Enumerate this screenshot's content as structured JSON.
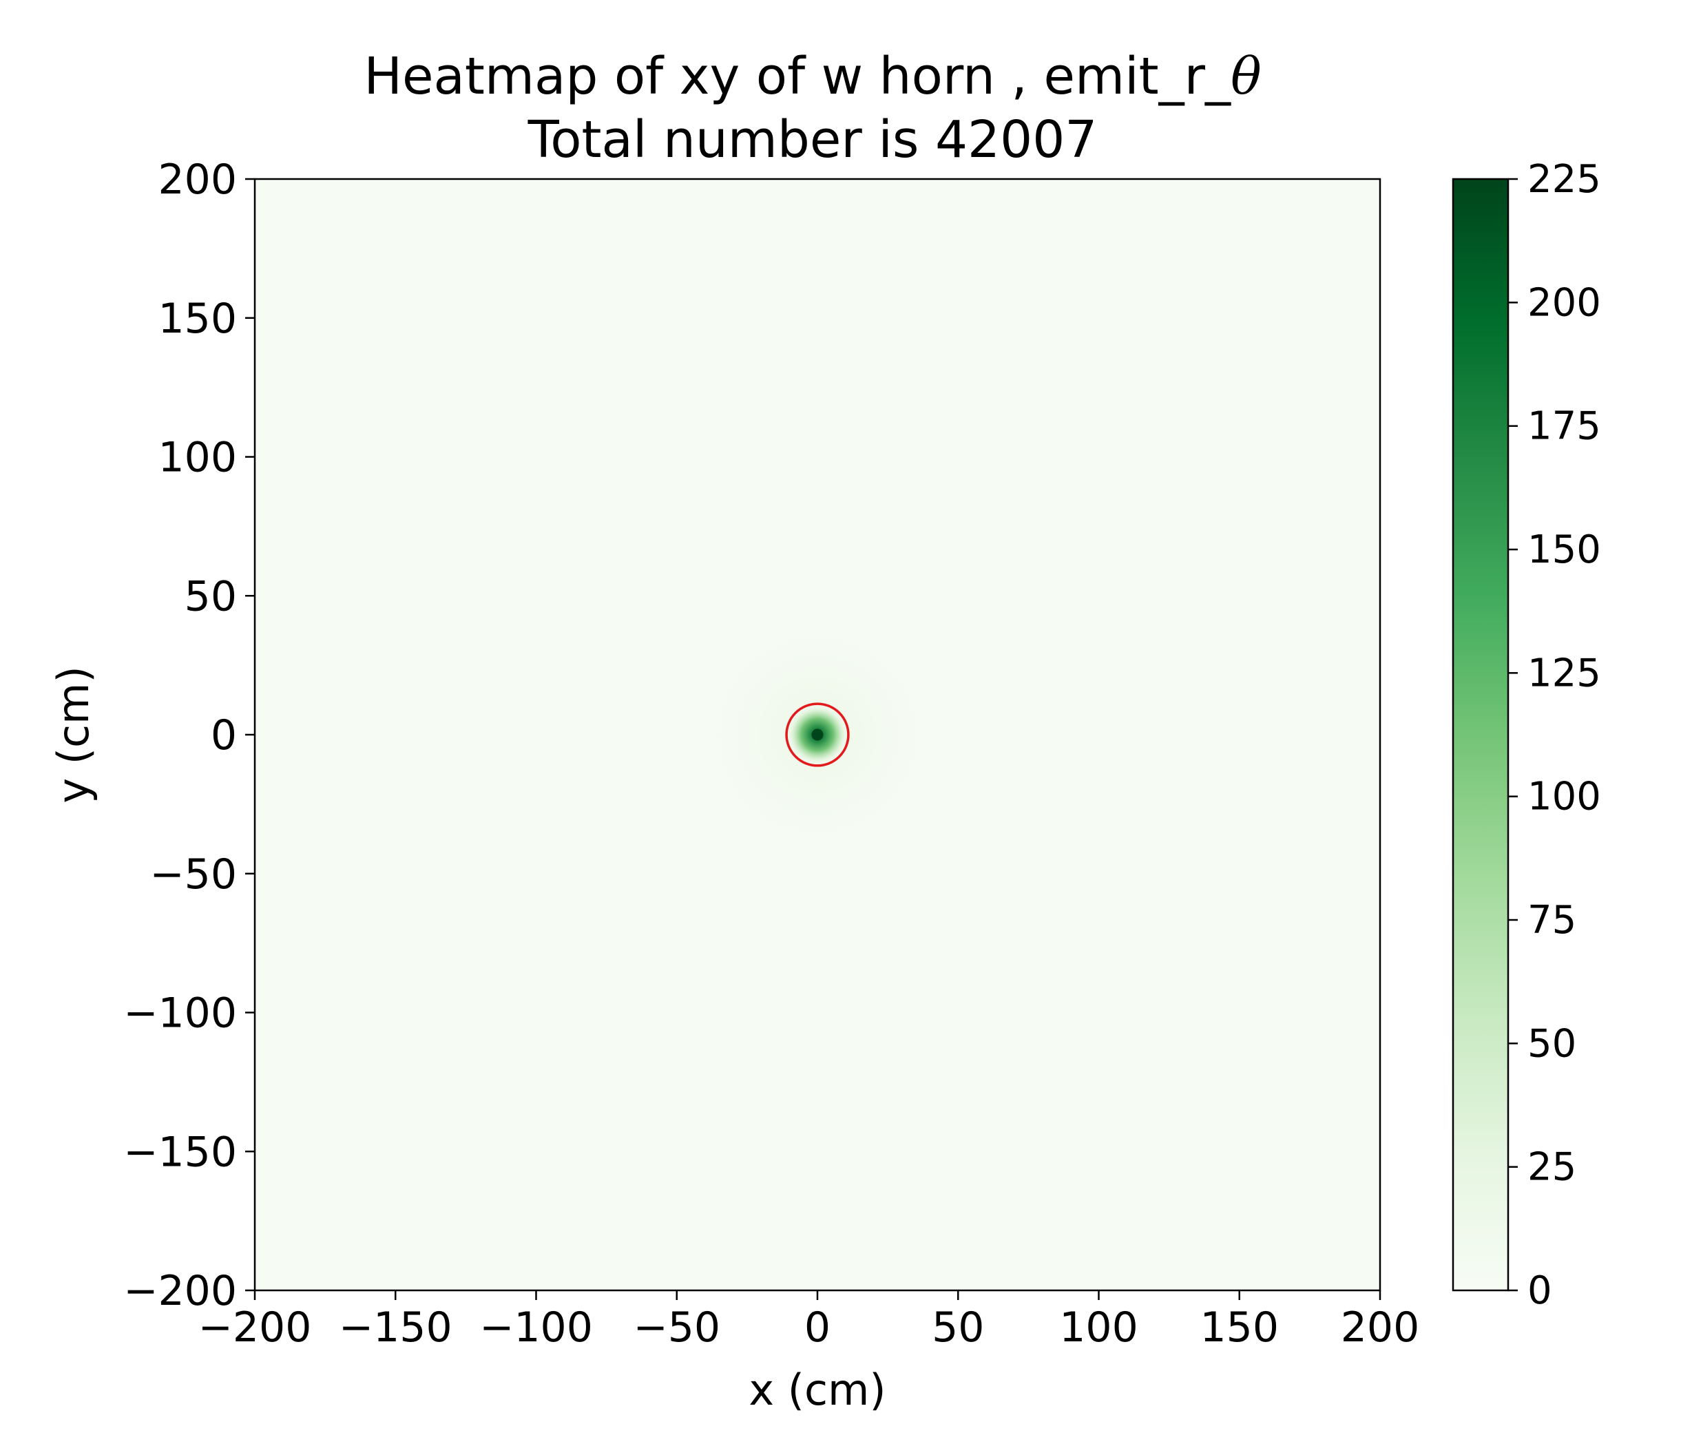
{
  "chart_data": {
    "type": "heatmap",
    "title": "Heatmap of xy of w horn , emit_r_θ",
    "title_line1_text": "Heatmap of xy of w horn , emit_r_",
    "title_line1_symbol": "θ",
    "subtitle": "Total number is 42007",
    "xlabel": "x (cm)",
    "ylabel": "y (cm)",
    "xlim": [
      -200,
      200
    ],
    "ylim": [
      -200,
      200
    ],
    "xticks": [
      -200,
      -150,
      -100,
      -50,
      0,
      50,
      100,
      150,
      200
    ],
    "yticks": [
      -200,
      -150,
      -100,
      -50,
      0,
      50,
      100,
      150,
      200
    ],
    "xtick_labels": [
      "−200",
      "−150",
      "−100",
      "−50",
      "0",
      "50",
      "100",
      "150",
      "200"
    ],
    "ytick_labels": [
      "−200",
      "−150",
      "−100",
      "−50",
      "0",
      "50",
      "100",
      "150",
      "200"
    ],
    "colorbar": {
      "cmap": "Greens",
      "vmin": 0,
      "vmax": 225,
      "ticks": [
        0,
        25,
        50,
        75,
        100,
        125,
        150,
        175,
        200,
        225
      ],
      "tick_labels": [
        "0",
        "25",
        "50",
        "75",
        "100",
        "125",
        "150",
        "175",
        "200",
        "225"
      ],
      "colors": [
        "#f7fcf5",
        "#e5f5e0",
        "#c7e9c0",
        "#a1d99b",
        "#74c476",
        "#41ab5d",
        "#238b45",
        "#006d2c",
        "#00441b"
      ]
    },
    "hotspot": {
      "center": [
        0,
        0
      ],
      "peak_count": 225,
      "sigma_cm": 3.5,
      "halo_extent_cm": 25
    },
    "circle_annotation": {
      "center": [
        0,
        0
      ],
      "radius_cm": 11,
      "color": "#e31a1c"
    },
    "grid": false,
    "total": 42007
  }
}
